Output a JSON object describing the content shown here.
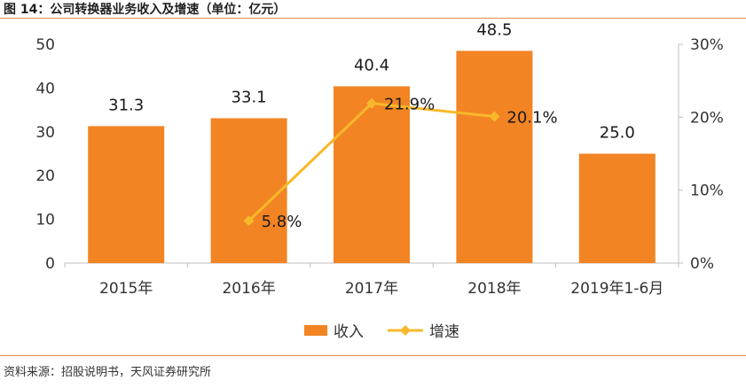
{
  "figure": {
    "title": "图 14：公司转换器业务收入及增速（单位：亿元）",
    "source": "资料来源：招股说明书，天风证券研究所"
  },
  "chart_data": {
    "type": "bar",
    "categories": [
      "2015年",
      "2016年",
      "2017年",
      "2018年",
      "2019年1-6月"
    ],
    "series": [
      {
        "name": "收入",
        "type": "bar",
        "axis": "left",
        "values": [
          31.3,
          33.1,
          40.4,
          48.5,
          25.0
        ],
        "labels": [
          "31.3",
          "33.1",
          "40.4",
          "48.5",
          "25.0"
        ],
        "color": "#f28423"
      },
      {
        "name": "增速",
        "type": "line",
        "axis": "right",
        "values": [
          null,
          5.8,
          21.9,
          20.1,
          null
        ],
        "labels": [
          "",
          "5.8%",
          "21.9%",
          "20.1%",
          ""
        ],
        "color": "#f7b92b"
      }
    ],
    "y_left": {
      "min": 0,
      "max": 50,
      "ticks": [
        "0",
        "10",
        "20",
        "30",
        "40",
        "50"
      ]
    },
    "y_right": {
      "min": 0,
      "max": 30,
      "ticks": [
        "0%",
        "10%",
        "20%",
        "30%"
      ]
    },
    "legend_position": "bottom",
    "grid": false
  }
}
